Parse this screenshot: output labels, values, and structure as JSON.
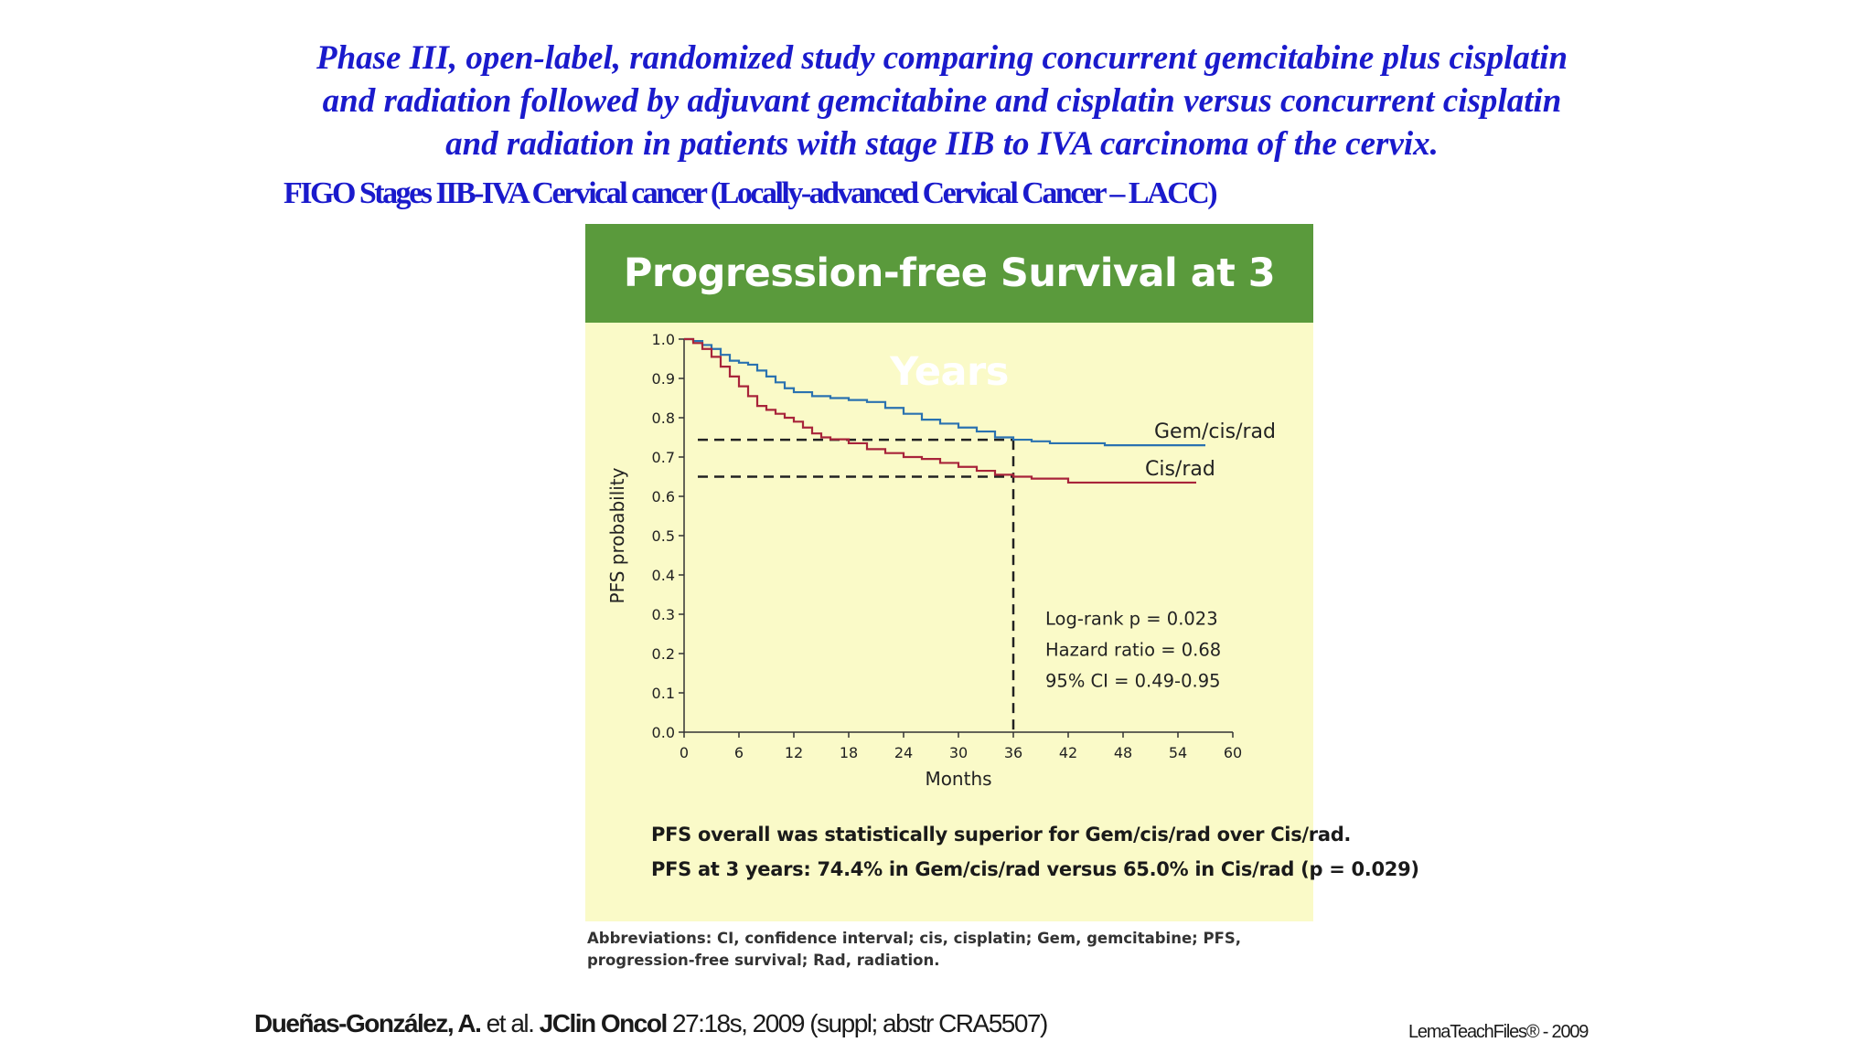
{
  "header": {
    "title_lines": [
      "Phase III, open-label, randomized study comparing concurrent gemcitabine plus cisplatin",
      "and radiation followed by adjuvant gemcitabine and cisplatin versus concurrent cisplatin",
      "and radiation in patients with stage IIB to IVA carcinoma of the cervix."
    ],
    "subtitle": "FIGO Stages IIB-IVA Cervical cancer (Locally-advanced Cervical Cancer – LACC)"
  },
  "figure": {
    "banner_title": "Progression-free Survival at 3 Years",
    "notes": [
      "PFS overall was statistically superior for Gem/cis/rad over Cis/rad.",
      "PFS at 3 years: 74.4% in Gem/cis/rad versus 65.0% in Cis/rad (p = 0.029)"
    ],
    "abbreviations": "Abbreviations: CI, confidence interval; cis, cisplatin; Gem, gemcitabine; PFS, progression-free survival; Rad, radiation.",
    "colors": {
      "banner": "#5a9a3c",
      "panel": "#fafac8",
      "gem": "#2a72b0",
      "cis": "#a8243a"
    }
  },
  "chart_data": {
    "type": "line",
    "title": "Progression-free Survival at 3 Years",
    "xlabel": "Months",
    "ylabel": "PFS probability",
    "xlim": [
      0,
      60
    ],
    "ylim": [
      0,
      1.0
    ],
    "xticks": [
      0,
      6,
      12,
      18,
      24,
      30,
      36,
      42,
      48,
      54,
      60
    ],
    "yticks": [
      "0.0",
      "0.1",
      "0.2",
      "0.3",
      "0.4",
      "0.5",
      "0.6",
      "0.7",
      "0.8",
      "0.9",
      "1.0"
    ],
    "grid": false,
    "series": [
      {
        "name": "Gem/cis/rad",
        "color": "#2a72b0",
        "x": [
          0,
          1,
          2,
          3,
          4,
          5,
          6,
          7,
          8,
          9,
          10,
          11,
          12,
          14,
          16,
          18,
          20,
          22,
          24,
          26,
          28,
          30,
          32,
          34,
          36,
          38,
          40,
          42,
          44,
          46,
          48,
          50,
          52,
          54,
          57
        ],
        "y": [
          1.0,
          0.995,
          0.985,
          0.975,
          0.96,
          0.945,
          0.94,
          0.935,
          0.92,
          0.905,
          0.89,
          0.875,
          0.865,
          0.855,
          0.85,
          0.845,
          0.84,
          0.825,
          0.81,
          0.795,
          0.785,
          0.775,
          0.765,
          0.75,
          0.744,
          0.74,
          0.735,
          0.735,
          0.735,
          0.73,
          0.73,
          0.73,
          0.73,
          0.73,
          0.73
        ]
      },
      {
        "name": "Cis/rad",
        "color": "#a8243a",
        "x": [
          0,
          1,
          2,
          3,
          4,
          5,
          6,
          7,
          8,
          9,
          10,
          11,
          12,
          13,
          14,
          15,
          16,
          18,
          20,
          22,
          24,
          26,
          28,
          30,
          32,
          34,
          36,
          38,
          40,
          42,
          44,
          46,
          48,
          50,
          52,
          54,
          56
        ],
        "y": [
          1.0,
          0.99,
          0.975,
          0.955,
          0.93,
          0.905,
          0.88,
          0.855,
          0.83,
          0.82,
          0.81,
          0.8,
          0.79,
          0.775,
          0.76,
          0.75,
          0.745,
          0.735,
          0.72,
          0.71,
          0.7,
          0.695,
          0.685,
          0.675,
          0.665,
          0.655,
          0.65,
          0.645,
          0.645,
          0.635,
          0.635,
          0.635,
          0.635,
          0.635,
          0.635,
          0.635,
          0.635
        ]
      }
    ],
    "reference_lines": {
      "x": 36,
      "y": [
        0.744,
        0.65
      ]
    },
    "annotations": [
      "Log-rank p = 0.023",
      "Hazard ratio = 0.68",
      "95% CI = 0.49-0.95"
    ]
  },
  "footer": {
    "citation_author": "Dueñas-González, A.",
    "citation_etal": " et al. ",
    "citation_journal": "JClin Oncol",
    "citation_rest": " 27:18s, 2009 (suppl; abstr CRA5507)",
    "credit": "LemaTeachFiles® - 2009"
  }
}
